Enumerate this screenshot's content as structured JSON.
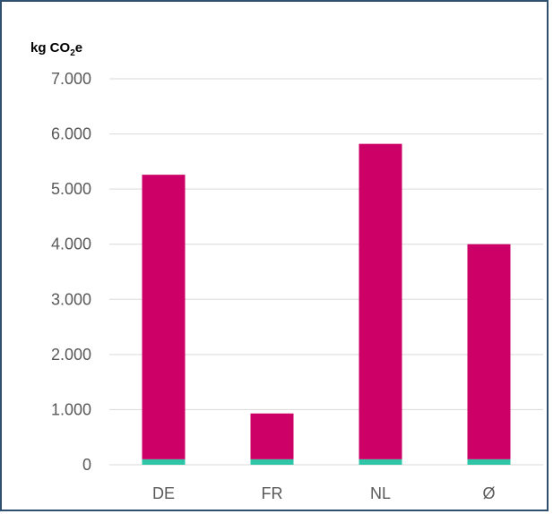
{
  "chart_data": {
    "type": "bar",
    "stacked": true,
    "unit_label": {
      "base": "kg CO",
      "subscript": "2",
      "suffix": "e"
    },
    "categories": [
      "DE",
      "FR",
      "NL",
      "Ø"
    ],
    "series": [
      {
        "values": [
          100,
          100,
          100,
          100
        ],
        "color": "#2ec4a6"
      },
      {
        "values": [
          5160,
          830,
          5720,
          3900
        ],
        "color": "#cc0066"
      }
    ],
    "ylim": [
      0,
      7000
    ],
    "y_ticks": [
      {
        "value": 0,
        "label": "0"
      },
      {
        "value": 1000,
        "label": "1.000"
      },
      {
        "value": 2000,
        "label": "2.000"
      },
      {
        "value": 3000,
        "label": "3.000"
      },
      {
        "value": 4000,
        "label": "4.000"
      },
      {
        "value": 5000,
        "label": "5.000"
      },
      {
        "value": 6000,
        "label": "6.000"
      },
      {
        "value": 7000,
        "label": "7.000"
      }
    ],
    "grid": true,
    "gridline_color": "#d9d9d9"
  }
}
